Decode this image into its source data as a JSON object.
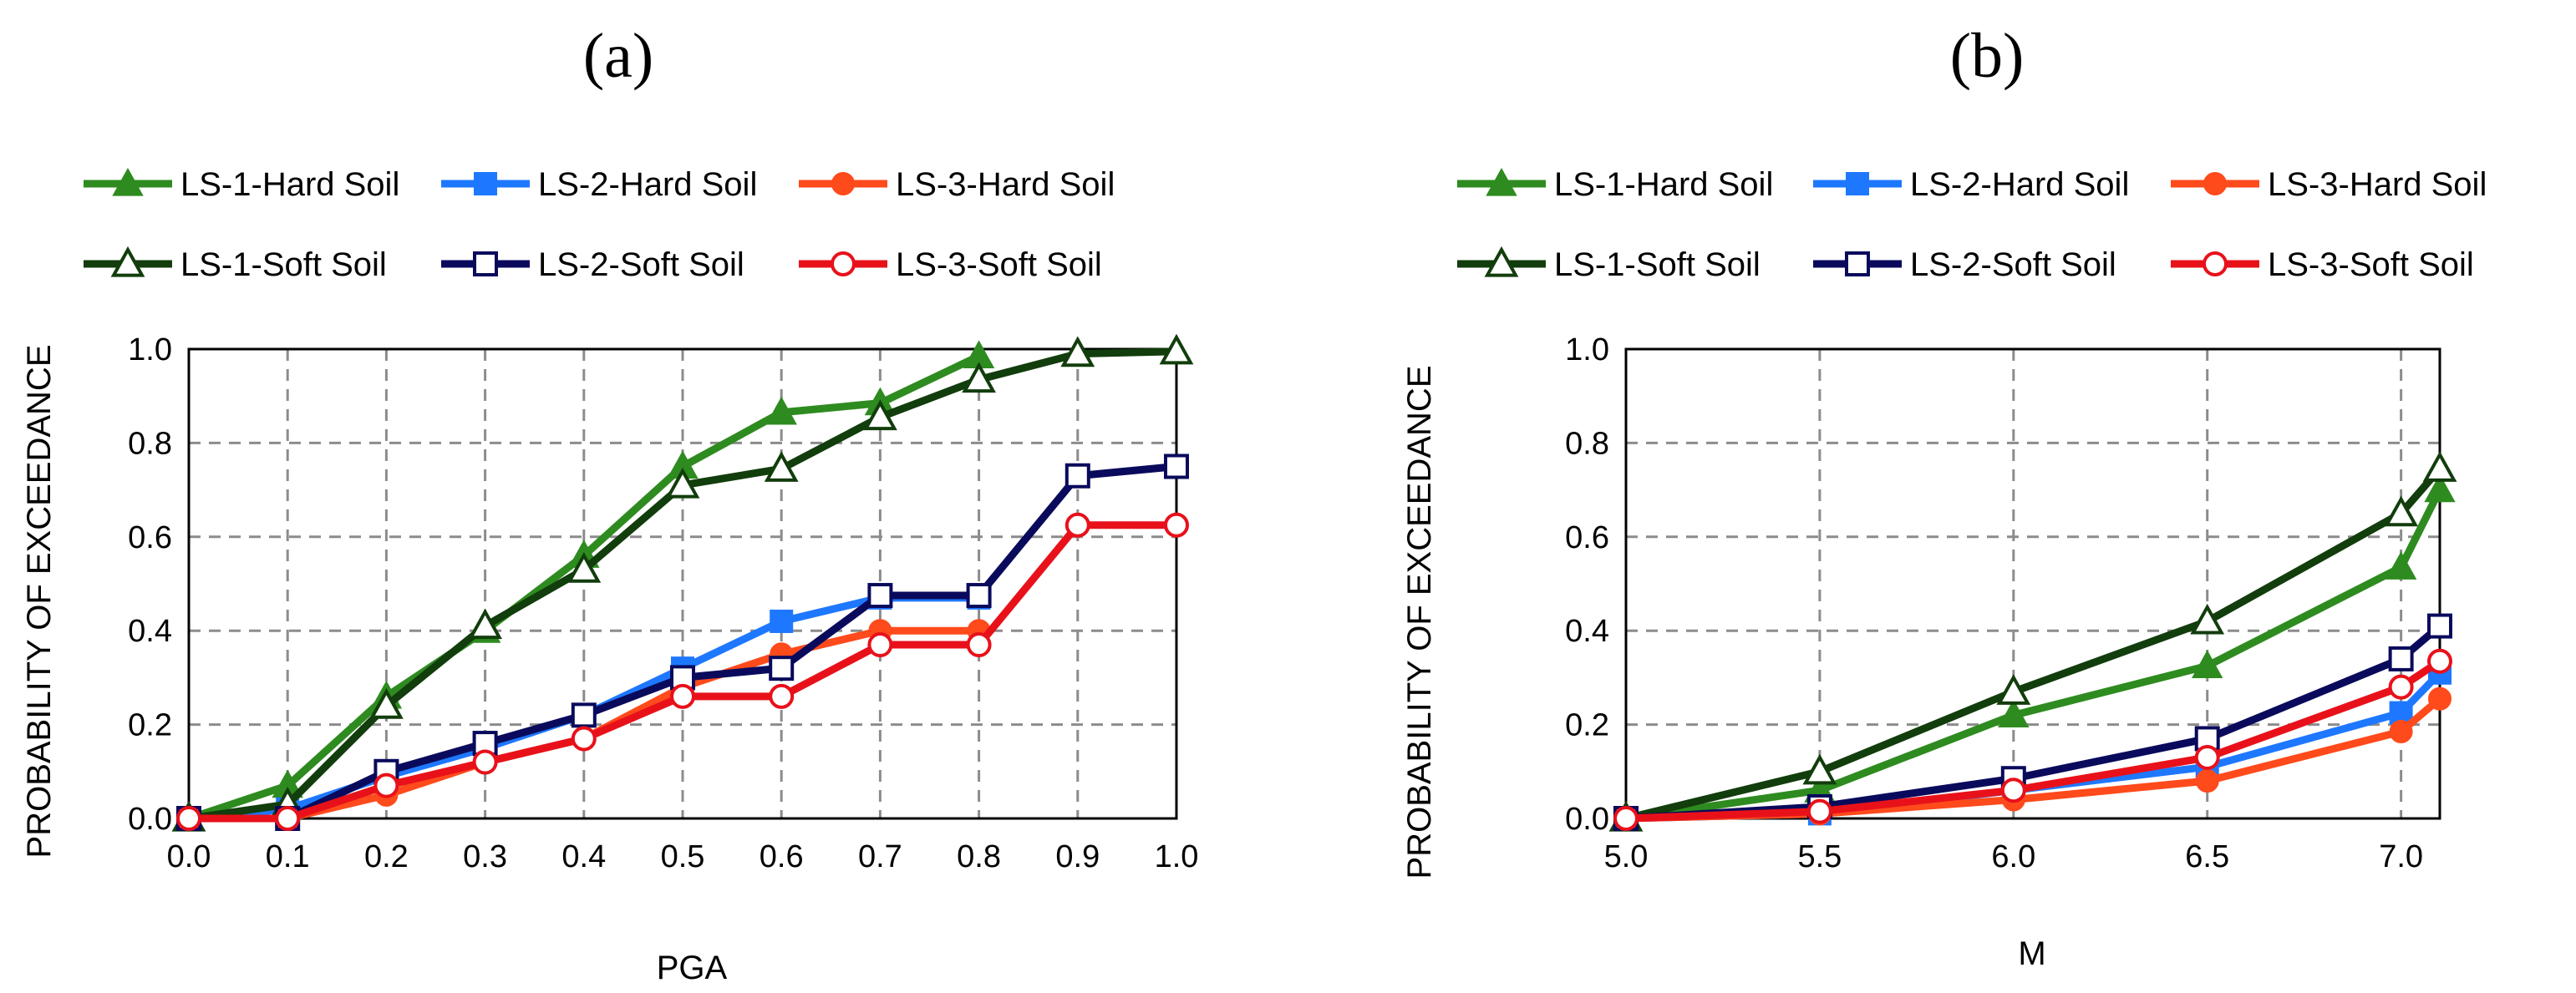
{
  "chart_data": [
    {
      "type": "line",
      "title": "(a)",
      "xlabel": "PGA",
      "ylabel": "PROBABILITY OF EXCEEDANCE",
      "xlim": [
        0.0,
        1.0
      ],
      "ylim": [
        0.0,
        1.0
      ],
      "x_ticks": [
        "0.0",
        "0.1",
        "0.2",
        "0.3",
        "0.4",
        "0.5",
        "0.6",
        "0.7",
        "0.8",
        "0.9",
        "1.0"
      ],
      "y_ticks": [
        "0.0",
        "0.2",
        "0.4",
        "0.6",
        "0.8",
        "1.0"
      ],
      "grid": true,
      "legend_position": "top",
      "series": [
        {
          "name": "LS-1-Hard Soil",
          "color": "#2E8B1F",
          "marker": "triangle-filled",
          "x": [
            0.0,
            0.1,
            0.2,
            0.3,
            0.4,
            0.5,
            0.6,
            0.7,
            0.8
          ],
          "values": [
            0.0,
            0.07,
            0.26,
            0.4,
            0.56,
            0.75,
            0.865,
            0.885,
            0.985
          ]
        },
        {
          "name": "LS-2-Hard Soil",
          "color": "#1E78FF",
          "marker": "square-filled",
          "x": [
            0.0,
            0.1,
            0.2,
            0.3,
            0.4,
            0.5,
            0.6,
            0.7,
            0.8
          ],
          "values": [
            0.0,
            0.02,
            0.09,
            0.15,
            0.22,
            0.32,
            0.42,
            0.47,
            0.47
          ]
        },
        {
          "name": "LS-3-Hard Soil",
          "color": "#FF4A1C",
          "marker": "circle-filled",
          "x": [
            0.0,
            0.1,
            0.2,
            0.3,
            0.4,
            0.5,
            0.6,
            0.7,
            0.8
          ],
          "values": [
            0.0,
            0.0,
            0.05,
            0.12,
            0.17,
            0.28,
            0.35,
            0.4,
            0.4
          ]
        },
        {
          "name": "LS-1-Soft Soil",
          "color": "#123D0C",
          "marker": "triangle-open",
          "x": [
            0.0,
            0.1,
            0.2,
            0.3,
            0.4,
            0.5,
            0.6,
            0.7,
            0.8,
            0.9,
            1.0
          ],
          "values": [
            0.0,
            0.03,
            0.24,
            0.41,
            0.53,
            0.71,
            0.745,
            0.855,
            0.935,
            0.99,
            0.995
          ]
        },
        {
          "name": "LS-2-Soft Soil",
          "color": "#0A0A5C",
          "marker": "square-open",
          "x": [
            0.0,
            0.1,
            0.2,
            0.3,
            0.4,
            0.5,
            0.6,
            0.7,
            0.8,
            0.9,
            1.0
          ],
          "values": [
            0.0,
            0.0,
            0.1,
            0.16,
            0.22,
            0.3,
            0.32,
            0.475,
            0.475,
            0.73,
            0.75
          ]
        },
        {
          "name": "LS-3-Soft Soil",
          "color": "#E8111A",
          "marker": "circle-open",
          "x": [
            0.0,
            0.1,
            0.2,
            0.3,
            0.4,
            0.5,
            0.6,
            0.7,
            0.8,
            0.9,
            1.0
          ],
          "values": [
            0.0,
            0.0,
            0.07,
            0.12,
            0.17,
            0.26,
            0.26,
            0.37,
            0.37,
            0.625,
            0.625
          ]
        }
      ]
    },
    {
      "type": "line",
      "title": "(b)",
      "xlabel": "M",
      "ylabel": "PROBABILITY OF EXCEEDANCE",
      "xlim": [
        5.0,
        7.1
      ],
      "ylim": [
        0.0,
        1.0
      ],
      "x_ticks": [
        "5.0",
        "5.5",
        "6.0",
        "6.5",
        "7.0"
      ],
      "y_ticks": [
        "0.0",
        "0.2",
        "0.4",
        "0.6",
        "0.8",
        "1.0"
      ],
      "grid": true,
      "legend_position": "top",
      "series": [
        {
          "name": "LS-1-Hard Soil",
          "color": "#2E8B1F",
          "marker": "triangle-filled",
          "x": [
            5.0,
            5.5,
            6.0,
            6.5,
            7.0,
            7.1
          ],
          "values": [
            0.0,
            0.06,
            0.22,
            0.325,
            0.535,
            0.7
          ]
        },
        {
          "name": "LS-2-Hard Soil",
          "color": "#1E78FF",
          "marker": "square-filled",
          "x": [
            5.0,
            5.5,
            6.0,
            6.5,
            7.0,
            7.1
          ],
          "values": [
            0.0,
            0.01,
            0.06,
            0.11,
            0.225,
            0.31
          ]
        },
        {
          "name": "LS-3-Hard Soil",
          "color": "#FF4A1C",
          "marker": "circle-filled",
          "x": [
            5.0,
            5.5,
            6.0,
            6.5,
            7.0,
            7.1
          ],
          "values": [
            0.0,
            0.01,
            0.04,
            0.08,
            0.185,
            0.255
          ]
        },
        {
          "name": "LS-1-Soft Soil",
          "color": "#123D0C",
          "marker": "triangle-open",
          "x": [
            5.0,
            5.5,
            6.0,
            6.5,
            7.0,
            7.1
          ],
          "values": [
            0.0,
            0.1,
            0.27,
            0.42,
            0.65,
            0.745
          ]
        },
        {
          "name": "LS-2-Soft Soil",
          "color": "#0A0A5C",
          "marker": "square-open",
          "x": [
            5.0,
            5.5,
            6.0,
            6.5,
            7.0,
            7.1
          ],
          "values": [
            0.0,
            0.025,
            0.085,
            0.17,
            0.34,
            0.41
          ]
        },
        {
          "name": "LS-3-Soft Soil",
          "color": "#E8111A",
          "marker": "circle-open",
          "x": [
            5.0,
            5.5,
            6.0,
            6.5,
            7.0,
            7.1
          ],
          "values": [
            0.0,
            0.015,
            0.06,
            0.13,
            0.28,
            0.335
          ]
        }
      ]
    }
  ]
}
